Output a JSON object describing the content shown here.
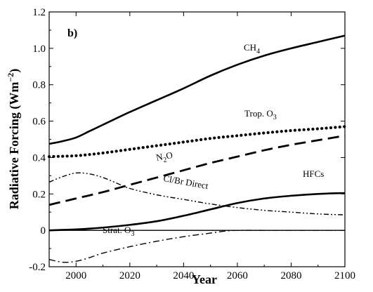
{
  "chart_data": {
    "type": "line",
    "panel_label": "b)",
    "xlabel": "Year",
    "ylabel_text": "Radiative Forcing (Wm",
    "ylabel_exp": "−2",
    "ylabel_close": ")",
    "xlim": [
      1990,
      2100
    ],
    "ylim": [
      -0.2,
      1.2
    ],
    "xticks": [
      2000,
      2020,
      2040,
      2060,
      2080,
      2100
    ],
    "yticks": [
      -0.2,
      0.0,
      0.2,
      0.4,
      0.6,
      0.8,
      1.0,
      1.2
    ],
    "ytick_labels": [
      "-0.2",
      "0",
      "0.2",
      "0.4",
      "0.6",
      "0.8",
      "1.0",
      "1.2"
    ],
    "zero_line": true,
    "grid": false,
    "series": [
      {
        "name": "CH4",
        "label_main": "CH",
        "label_sub": "4",
        "label_sub_style": "subscript",
        "dash": "solid",
        "color": "#000000",
        "x": [
          1990,
          1995,
          2000,
          2005,
          2010,
          2020,
          2030,
          2040,
          2050,
          2060,
          2070,
          2080,
          2090,
          2100
        ],
        "y": [
          0.475,
          0.49,
          0.51,
          0.545,
          0.58,
          0.65,
          0.715,
          0.78,
          0.85,
          0.91,
          0.96,
          1.0,
          1.035,
          1.07
        ]
      },
      {
        "name": "Trop. O3",
        "label_main": "Trop. O",
        "label_sub": "3",
        "label_sub_style": "subscript",
        "dash": "dotted",
        "color": "#000000",
        "x": [
          1990,
          2000,
          2010,
          2020,
          2030,
          2040,
          2050,
          2060,
          2070,
          2080,
          2090,
          2100
        ],
        "y": [
          0.405,
          0.41,
          0.425,
          0.445,
          0.465,
          0.485,
          0.505,
          0.52,
          0.535,
          0.548,
          0.558,
          0.57
        ]
      },
      {
        "name": "N2O",
        "label_main": "N",
        "label_sub": "2",
        "label_tail": "O",
        "label_sub_style": "subscript",
        "dash": "dashed",
        "color": "#000000",
        "x": [
          1990,
          2000,
          2010,
          2020,
          2030,
          2040,
          2050,
          2060,
          2070,
          2080,
          2090,
          2100
        ],
        "y": [
          0.14,
          0.175,
          0.21,
          0.25,
          0.29,
          0.33,
          0.37,
          0.405,
          0.44,
          0.47,
          0.495,
          0.52
        ]
      },
      {
        "name": "Cl/Br Direct",
        "label_main": "Cl/Br Direct",
        "dash": "dash-dot-dot",
        "color": "#000000",
        "x": [
          1990,
          1995,
          2000,
          2005,
          2010,
          2015,
          2020,
          2030,
          2040,
          2050,
          2060,
          2070,
          2080,
          2090,
          2100
        ],
        "y": [
          0.265,
          0.295,
          0.315,
          0.31,
          0.29,
          0.26,
          0.23,
          0.195,
          0.17,
          0.145,
          0.125,
          0.11,
          0.1,
          0.09,
          0.085
        ]
      },
      {
        "name": "HFCs",
        "label_main": "HFCs",
        "dash": "solid",
        "color": "#000000",
        "x": [
          1990,
          2000,
          2010,
          2020,
          2030,
          2040,
          2050,
          2060,
          2070,
          2080,
          2090,
          2100
        ],
        "y": [
          0.0,
          0.005,
          0.015,
          0.03,
          0.05,
          0.08,
          0.115,
          0.15,
          0.175,
          0.19,
          0.2,
          0.205
        ]
      },
      {
        "name": "Strat. O3",
        "label_main": "Strat. O",
        "label_sub": "3",
        "label_sub_style": "subscript",
        "dash": "dash-dot",
        "color": "#000000",
        "x": [
          1990,
          1995,
          2000,
          2005,
          2010,
          2020,
          2030,
          2040,
          2050,
          2055,
          2060,
          2070,
          2080,
          2090,
          2100
        ],
        "y": [
          -0.16,
          -0.175,
          -0.17,
          -0.15,
          -0.125,
          -0.09,
          -0.06,
          -0.035,
          -0.015,
          -0.005,
          0.0,
          0.0,
          0.0,
          0.0,
          0.0
        ]
      }
    ]
  }
}
